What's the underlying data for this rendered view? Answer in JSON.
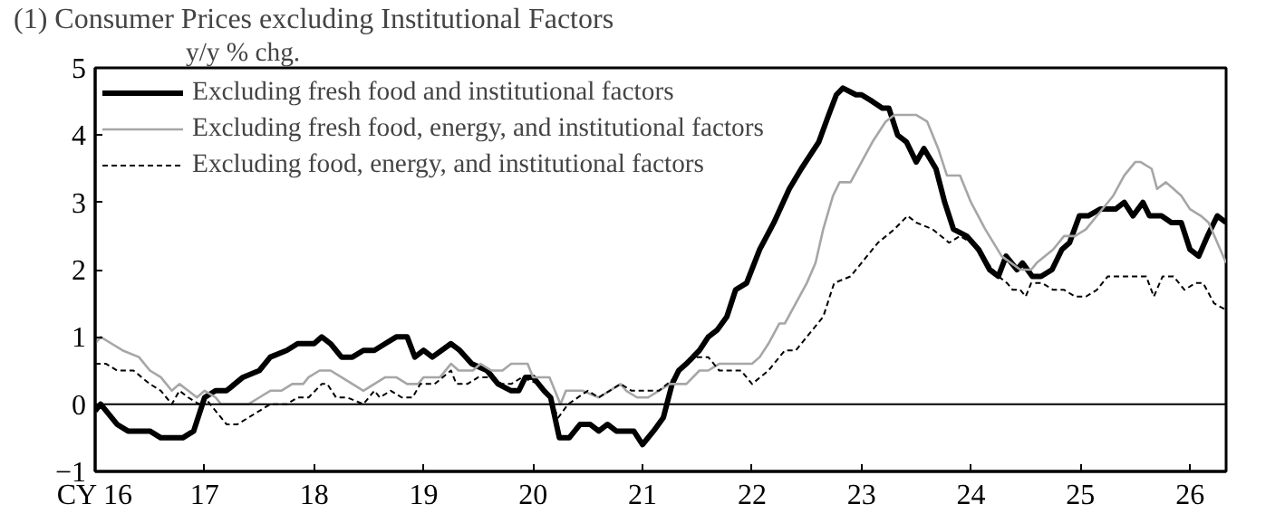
{
  "chart_data": {
    "type": "line",
    "title": "(1) Consumer Prices excluding Institutional Factors",
    "ylabel": "y/y % chg.",
    "xlim": [
      16,
      26.33
    ],
    "xticks": [
      {
        "value": 16,
        "label": "CY 16"
      },
      17,
      18,
      19,
      20,
      21,
      22,
      23,
      24,
      25,
      26
    ],
    "ylim": [
      -1,
      5
    ],
    "yticks": [
      -1,
      0,
      1,
      2,
      3,
      4,
      5
    ],
    "grid": false,
    "legend": "top left",
    "marker": "none",
    "ref_lines": [
      {
        "axis": "y",
        "value": 0,
        "color": "#000000"
      }
    ],
    "series": [
      {
        "name": "Excluding fresh food and institutional factors",
        "color": "#000000",
        "line_style": "solid",
        "x": [
          16.0,
          16.05,
          16.2,
          16.3,
          16.5,
          16.6,
          16.8,
          16.9,
          17.0,
          17.1,
          17.2,
          17.35,
          17.5,
          17.6,
          17.75,
          17.85,
          18.0,
          18.07,
          18.15,
          18.25,
          18.35,
          18.45,
          18.55,
          18.65,
          18.75,
          18.85,
          18.92,
          19.0,
          19.08,
          19.25,
          19.33,
          19.44,
          19.58,
          19.68,
          19.8,
          19.87,
          19.93,
          20.0,
          20.1,
          20.16,
          20.24,
          20.33,
          20.43,
          20.52,
          20.6,
          20.68,
          20.76,
          20.92,
          21.0,
          21.1,
          21.19,
          21.27,
          21.33,
          21.4,
          21.52,
          21.6,
          21.68,
          21.77,
          21.85,
          21.95,
          22.07,
          22.2,
          22.34,
          22.45,
          22.53,
          22.61,
          22.7,
          22.77,
          22.83,
          22.95,
          23.0,
          23.1,
          23.19,
          23.25,
          23.33,
          23.41,
          23.5,
          23.57,
          23.68,
          23.76,
          23.84,
          23.96,
          24.07,
          24.17,
          24.25,
          24.32,
          24.42,
          24.47,
          24.56,
          24.64,
          24.74,
          24.83,
          24.9,
          24.99,
          25.07,
          25.18,
          25.32,
          25.4,
          25.48,
          25.57,
          25.63,
          25.74,
          25.83,
          25.92,
          26.0,
          26.08,
          26.16,
          26.25,
          26.33
        ],
        "values": [
          -0.1,
          0.0,
          -0.3,
          -0.4,
          -0.4,
          -0.5,
          -0.5,
          -0.4,
          0.1,
          0.2,
          0.2,
          0.4,
          0.5,
          0.7,
          0.8,
          0.9,
          0.9,
          1.0,
          0.9,
          0.7,
          0.7,
          0.8,
          0.8,
          0.9,
          1.0,
          1.0,
          0.7,
          0.8,
          0.7,
          0.9,
          0.8,
          0.6,
          0.5,
          0.3,
          0.2,
          0.2,
          0.4,
          0.4,
          0.2,
          0.1,
          -0.5,
          -0.5,
          -0.3,
          -0.3,
          -0.4,
          -0.3,
          -0.4,
          -0.4,
          -0.6,
          -0.4,
          -0.2,
          0.3,
          0.5,
          0.6,
          0.8,
          1.0,
          1.1,
          1.3,
          1.7,
          1.8,
          2.3,
          2.7,
          3.2,
          3.5,
          3.7,
          3.9,
          4.3,
          4.6,
          4.7,
          4.6,
          4.6,
          4.5,
          4.4,
          4.4,
          4.0,
          3.9,
          3.6,
          3.8,
          3.5,
          3.0,
          2.6,
          2.5,
          2.3,
          2.0,
          1.9,
          2.2,
          2.0,
          2.1,
          1.9,
          1.9,
          2.0,
          2.3,
          2.4,
          2.8,
          2.8,
          2.9,
          2.9,
          3.0,
          2.8,
          3.0,
          2.8,
          2.8,
          2.7,
          2.7,
          2.3,
          2.2,
          2.5,
          2.8,
          2.7
        ]
      },
      {
        "name": "Excluding fresh food, energy, and institutional factors",
        "color": "#a6a6a6",
        "line_style": "solid",
        "x": [
          16.0,
          16.05,
          16.15,
          16.25,
          16.4,
          16.5,
          16.6,
          16.7,
          16.77,
          16.85,
          16.93,
          17.0,
          17.1,
          17.15,
          17.4,
          17.5,
          17.6,
          17.7,
          17.8,
          17.9,
          17.95,
          18.05,
          18.15,
          18.25,
          18.35,
          18.45,
          18.55,
          18.65,
          18.75,
          18.85,
          18.95,
          19.0,
          19.15,
          19.25,
          19.32,
          19.45,
          19.52,
          19.62,
          19.72,
          19.8,
          19.95,
          20.0,
          20.15,
          20.25,
          20.3,
          20.45,
          20.6,
          20.7,
          20.8,
          20.85,
          20.95,
          21.05,
          21.15,
          21.25,
          21.4,
          21.52,
          21.6,
          21.7,
          21.8,
          21.9,
          22.0,
          22.07,
          22.15,
          22.25,
          22.3,
          22.4,
          22.5,
          22.58,
          22.65,
          22.74,
          22.8,
          22.9,
          23.0,
          23.1,
          23.22,
          23.3,
          23.5,
          23.6,
          23.7,
          23.78,
          23.9,
          24.0,
          24.13,
          24.28,
          24.45,
          24.55,
          24.6,
          24.75,
          24.85,
          24.95,
          25.05,
          25.15,
          25.3,
          25.4,
          25.5,
          25.55,
          25.65,
          25.7,
          25.78,
          25.85,
          25.92,
          26.0,
          26.1,
          26.17,
          26.25,
          26.33
        ],
        "values": [
          0.9,
          1.0,
          0.9,
          0.8,
          0.7,
          0.5,
          0.4,
          0.2,
          0.3,
          0.2,
          0.1,
          0.2,
          0.1,
          0.0,
          0.0,
          0.1,
          0.2,
          0.2,
          0.3,
          0.3,
          0.4,
          0.5,
          0.5,
          0.4,
          0.3,
          0.2,
          0.3,
          0.4,
          0.4,
          0.3,
          0.3,
          0.4,
          0.4,
          0.6,
          0.5,
          0.5,
          0.6,
          0.5,
          0.5,
          0.6,
          0.6,
          0.4,
          0.4,
          0.0,
          0.2,
          0.2,
          0.1,
          0.2,
          0.3,
          0.2,
          0.1,
          0.1,
          0.2,
          0.3,
          0.3,
          0.5,
          0.5,
          0.6,
          0.6,
          0.6,
          0.6,
          0.7,
          0.9,
          1.2,
          1.2,
          1.5,
          1.8,
          2.1,
          2.6,
          3.1,
          3.3,
          3.3,
          3.6,
          3.9,
          4.2,
          4.3,
          4.3,
          4.2,
          3.8,
          3.4,
          3.4,
          3.0,
          2.6,
          2.2,
          2.0,
          2.0,
          2.1,
          2.3,
          2.5,
          2.5,
          2.6,
          2.8,
          3.1,
          3.4,
          3.6,
          3.6,
          3.5,
          3.2,
          3.3,
          3.2,
          3.1,
          2.9,
          2.8,
          2.7,
          2.4,
          2.1
        ]
      },
      {
        "name": "Excluding food, energy, and institutional factors",
        "color": "#000000",
        "line_style": "dashed",
        "x": [
          16.0,
          16.1,
          16.2,
          16.35,
          16.5,
          16.6,
          16.7,
          16.77,
          16.85,
          16.95,
          17.0,
          17.1,
          17.2,
          17.3,
          17.4,
          17.5,
          17.6,
          17.75,
          17.85,
          17.95,
          18.07,
          18.12,
          18.2,
          18.3,
          18.45,
          18.55,
          18.6,
          18.7,
          18.8,
          18.9,
          18.97,
          19.1,
          19.25,
          19.3,
          19.4,
          19.5,
          19.6,
          19.72,
          19.8,
          19.9,
          20.05,
          20.15,
          20.23,
          20.32,
          20.5,
          20.6,
          20.7,
          20.8,
          20.9,
          21.05,
          21.15,
          21.3,
          21.45,
          21.6,
          21.7,
          21.9,
          22.0,
          22.15,
          22.3,
          22.4,
          22.55,
          22.65,
          22.75,
          22.9,
          23.0,
          23.15,
          23.3,
          23.42,
          23.5,
          23.65,
          23.8,
          23.9,
          24.0,
          24.1,
          24.25,
          24.33,
          24.38,
          24.45,
          24.5,
          24.55,
          24.65,
          24.75,
          24.85,
          24.95,
          25.05,
          25.15,
          25.25,
          25.6,
          25.67,
          25.75,
          25.85,
          25.95,
          26.05,
          26.12,
          26.22,
          26.33
        ],
        "values": [
          0.6,
          0.6,
          0.5,
          0.5,
          0.3,
          0.2,
          0.0,
          0.2,
          0.1,
          0.0,
          0.1,
          -0.1,
          -0.3,
          -0.3,
          -0.2,
          -0.1,
          0.0,
          0.0,
          0.1,
          0.1,
          0.3,
          0.3,
          0.1,
          0.1,
          0.0,
          0.2,
          0.1,
          0.2,
          0.1,
          0.1,
          0.3,
          0.3,
          0.5,
          0.3,
          0.3,
          0.4,
          0.4,
          0.3,
          0.3,
          0.4,
          0.3,
          0.1,
          -0.2,
          0.0,
          0.2,
          0.1,
          0.2,
          0.3,
          0.2,
          0.2,
          0.2,
          0.4,
          0.7,
          0.7,
          0.5,
          0.5,
          0.3,
          0.5,
          0.8,
          0.8,
          1.1,
          1.3,
          1.8,
          1.9,
          2.1,
          2.4,
          2.6,
          2.8,
          2.7,
          2.6,
          2.4,
          2.5,
          2.4,
          2.2,
          1.9,
          1.8,
          1.7,
          1.7,
          1.6,
          1.8,
          1.8,
          1.7,
          1.7,
          1.6,
          1.6,
          1.7,
          1.9,
          1.9,
          1.6,
          1.9,
          1.9,
          1.7,
          1.8,
          1.8,
          1.5,
          1.4
        ]
      }
    ]
  }
}
